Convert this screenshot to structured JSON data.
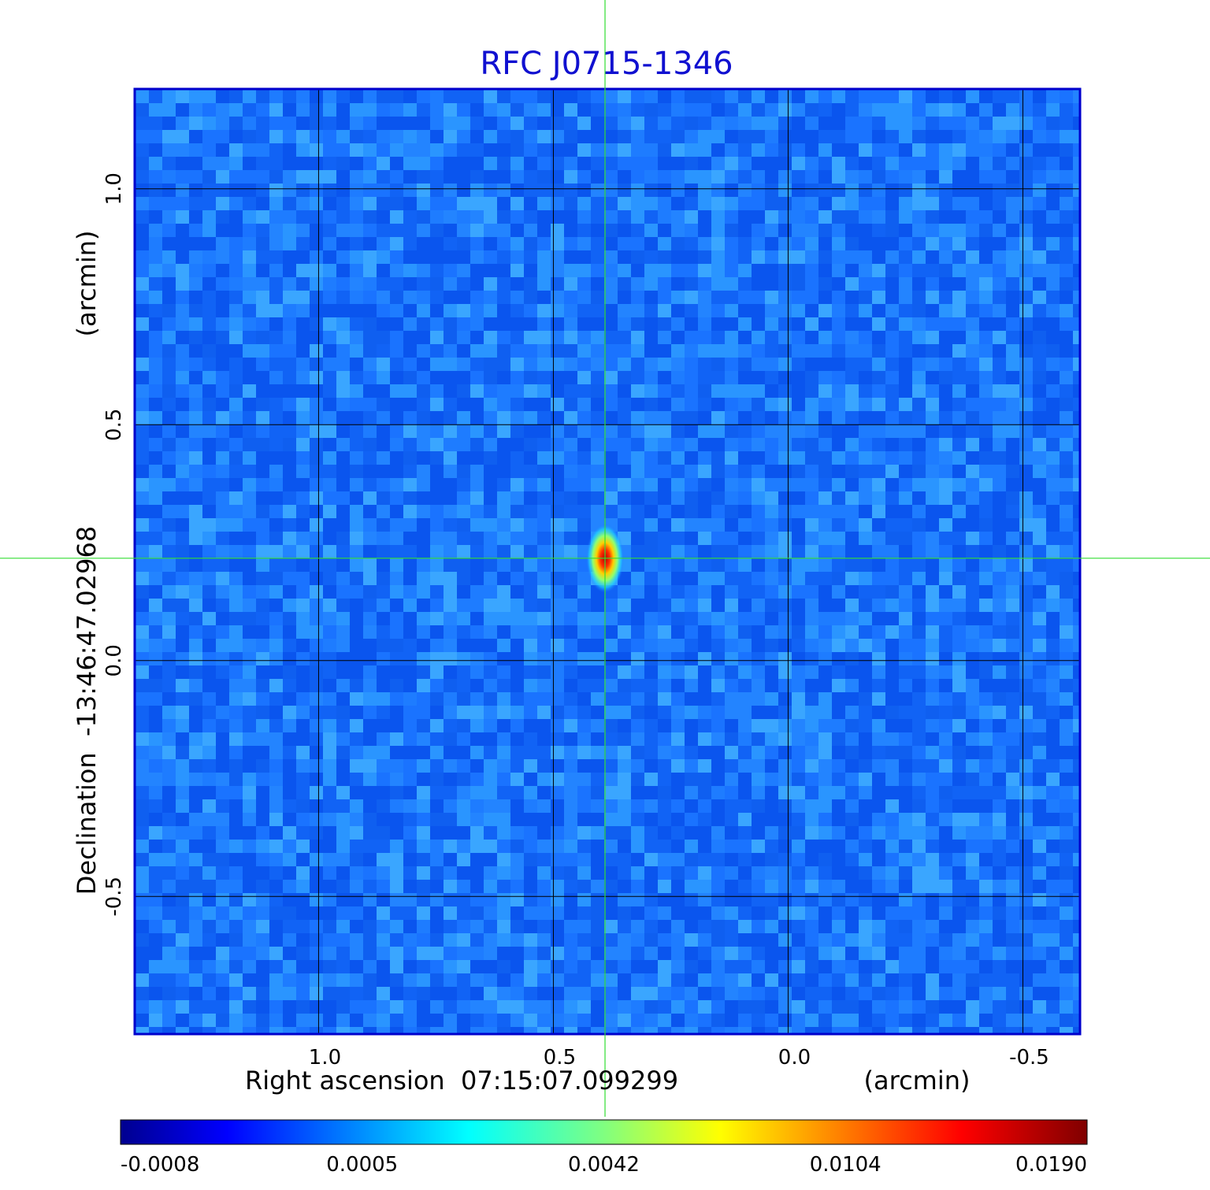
{
  "chart_data": {
    "type": "heatmap",
    "title": "RFC J0715-1346",
    "xlabel": "Right ascension  07:15:07.099299",
    "xunit": "(arcmin)",
    "ylabel": "Declination  -13:46:47.02968",
    "yunit": "(arcmin)",
    "x_ticks": [
      {
        "value": 1.0,
        "label": "1.0"
      },
      {
        "value": 0.5,
        "label": "0.5"
      },
      {
        "value": 0.0,
        "label": "0.0"
      },
      {
        "value": -0.5,
        "label": "-0.5"
      }
    ],
    "y_ticks": [
      {
        "value": 1.0,
        "label": "1.0"
      },
      {
        "value": 0.5,
        "label": "0.5"
      },
      {
        "value": 0.0,
        "label": "0.0"
      },
      {
        "value": -0.5,
        "label": "-0.5"
      }
    ],
    "xlim": [
      1.39,
      -0.62
    ],
    "ylim": [
      -0.79,
      1.21
    ],
    "grid": true,
    "x_inverted": true,
    "crosshair": {
      "x": 0.39,
      "y": 0.217
    },
    "source_peak": {
      "x": 0.39,
      "y": 0.217,
      "value": 0.019
    },
    "background_level": 0.0005,
    "colorbar": {
      "colormap": "jet",
      "ticks": [
        {
          "value": -0.0008,
          "label": "-0.0008"
        },
        {
          "value": 0.0005,
          "label": "0.0005"
        },
        {
          "value": 0.0042,
          "label": "0.0042"
        },
        {
          "value": 0.0104,
          "label": "0.0104"
        },
        {
          "value": 0.019,
          "label": "0.0190"
        }
      ]
    },
    "colors": {
      "title": "#1010d0",
      "frame": "#0000cc",
      "grid": "#000000",
      "crosshair": "#33dd33"
    }
  }
}
